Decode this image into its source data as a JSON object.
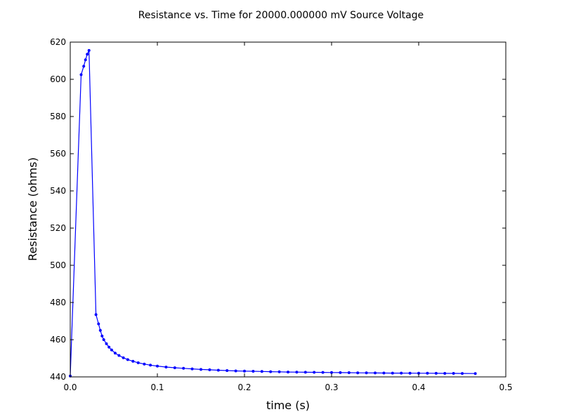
{
  "chart_data": {
    "type": "line",
    "title": "Resistance vs. Time for 20000.000000 mV Source Voltage",
    "xlabel": "time (s)",
    "ylabel": "Resistance (ohms)",
    "xlim": [
      0.0,
      0.5
    ],
    "ylim": [
      440,
      620
    ],
    "x_ticks": [
      "0.0",
      "0.1",
      "0.2",
      "0.3",
      "0.4",
      "0.5"
    ],
    "y_ticks": [
      "440",
      "460",
      "480",
      "500",
      "520",
      "540",
      "560",
      "580",
      "600",
      "620"
    ],
    "grid": false,
    "line_color": "#0000ff",
    "marker": "dot",
    "series": [
      {
        "x": [
          0.0,
          0.0125,
          0.0155,
          0.0175,
          0.0195,
          0.0215,
          0.0295,
          0.0325,
          0.0345,
          0.0365,
          0.0385,
          0.0415,
          0.0445,
          0.0475,
          0.0515,
          0.056,
          0.061,
          0.066,
          0.072,
          0.078,
          0.085,
          0.092,
          0.1,
          0.11,
          0.12,
          0.13,
          0.14,
          0.15,
          0.16,
          0.17,
          0.18,
          0.19,
          0.2,
          0.21,
          0.22,
          0.23,
          0.24,
          0.25,
          0.26,
          0.27,
          0.28,
          0.29,
          0.3,
          0.31,
          0.32,
          0.33,
          0.34,
          0.35,
          0.36,
          0.37,
          0.38,
          0.39,
          0.4,
          0.41,
          0.42,
          0.43,
          0.44,
          0.45,
          0.465
        ],
        "y": [
          440.5,
          602.5,
          607,
          610.5,
          613.5,
          615.5,
          473.5,
          468.5,
          465,
          462,
          460,
          457.8,
          456,
          454.5,
          452.8,
          451.5,
          450.3,
          449.3,
          448.4,
          447.6,
          446.9,
          446.3,
          445.8,
          445.3,
          444.9,
          444.6,
          444.3,
          444.0,
          443.8,
          443.6,
          443.4,
          443.2,
          443.1,
          443.0,
          442.9,
          442.8,
          442.7,
          442.6,
          442.55,
          442.5,
          442.45,
          442.4,
          442.35,
          442.3,
          442.25,
          442.2,
          442.15,
          442.1,
          442.08,
          442.05,
          442.02,
          442.0,
          441.98,
          441.95,
          441.92,
          441.9,
          441.88,
          441.85,
          441.8
        ]
      }
    ]
  }
}
